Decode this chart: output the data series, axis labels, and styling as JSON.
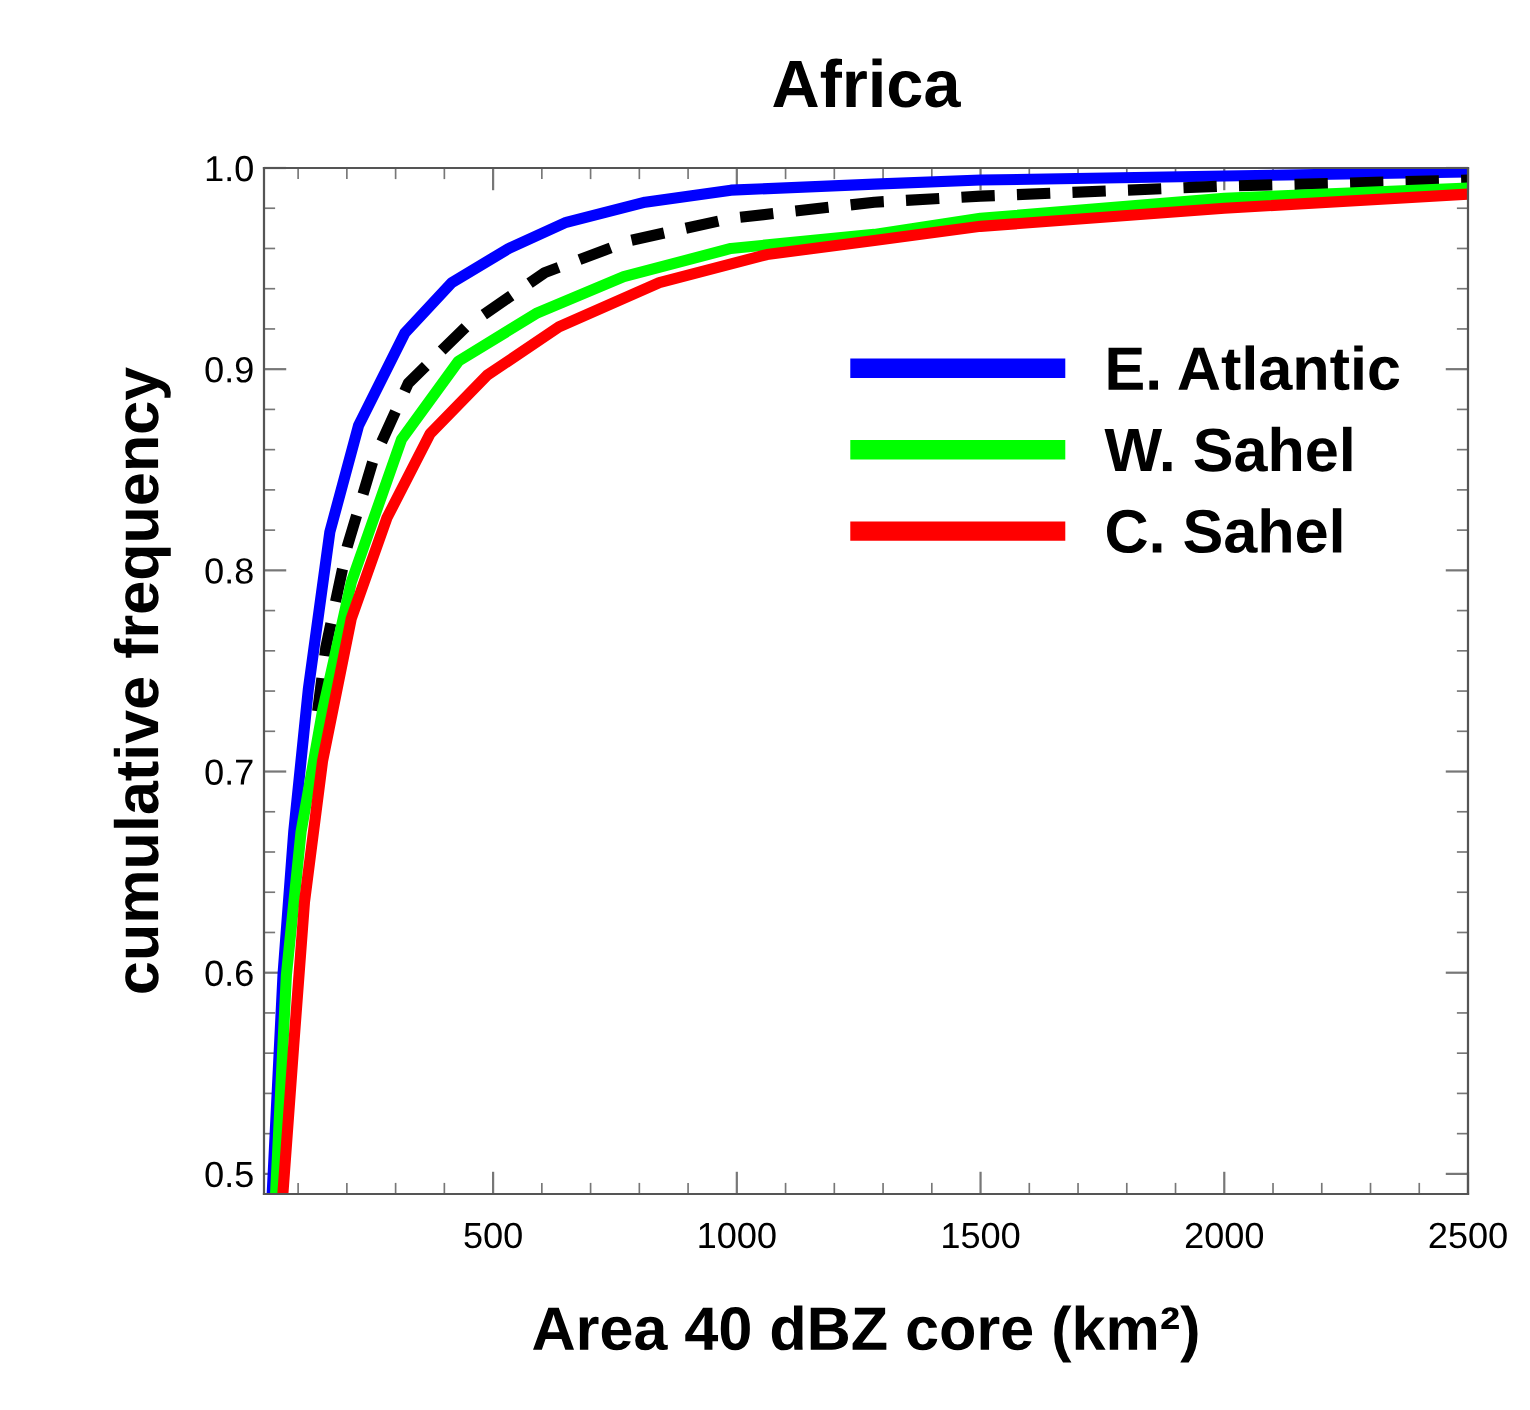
{
  "chart_data": {
    "type": "line",
    "title": "Africa",
    "xlabel": "Area 40 dBZ core (km²)",
    "ylabel": "cumulative frequency",
    "xlim": [
      30,
      2500
    ],
    "ylim": [
      0.49,
      1.0
    ],
    "xticks": [
      500,
      1000,
      1500,
      2000,
      2500
    ],
    "yticks": [
      {
        "value": 0.5,
        "label": "0.5"
      },
      {
        "value": 0.6,
        "label": "0.6"
      },
      {
        "value": 0.7,
        "label": "0.7"
      },
      {
        "value": 0.8,
        "label": "0.8"
      },
      {
        "value": 0.9,
        "label": "0.9"
      },
      {
        "value": 1.0,
        "label": "1.0"
      }
    ],
    "grid": false,
    "legend": "right",
    "marker": "none",
    "series": [
      {
        "name": "E. Atlantic",
        "color": "#0000ff",
        "line_style": "solid",
        "x": [
          47,
          69,
          91,
          121,
          165,
          224,
          319,
          415,
          532,
          650,
          812,
          988,
          1282,
          1500,
          2000,
          2500
        ],
        "values": [
          0.491,
          0.599,
          0.67,
          0.741,
          0.819,
          0.872,
          0.918,
          0.943,
          0.96,
          0.973,
          0.983,
          0.989,
          0.992,
          0.994,
          0.996,
          0.998
        ]
      },
      {
        "color": "#000000",
        "line_style": "dashed",
        "x": [
          140,
          157,
          201,
          253,
          326,
          444,
          606,
          782,
          988,
          1282,
          1500,
          2000,
          2500
        ],
        "values": [
          0.73,
          0.762,
          0.812,
          0.854,
          0.893,
          0.921,
          0.948,
          0.964,
          0.975,
          0.983,
          0.986,
          0.991,
          0.994
        ]
      },
      {
        "name": "W. Sahel",
        "color": "#00ff00",
        "line_style": "solid",
        "x": [
          54,
          76,
          106,
          150,
          209,
          312,
          429,
          591,
          768,
          988,
          1282,
          1500,
          2000,
          2500
        ],
        "values": [
          0.491,
          0.599,
          0.67,
          0.73,
          0.794,
          0.865,
          0.904,
          0.928,
          0.946,
          0.96,
          0.967,
          0.975,
          0.985,
          0.99
        ]
      },
      {
        "name": "C. Sahel",
        "color": "#ff0000",
        "line_style": "solid",
        "x": [
          69,
          91,
          113,
          150,
          209,
          282,
          371,
          488,
          635,
          841,
          1062,
          1282,
          1500,
          2000,
          2500
        ],
        "values": [
          0.491,
          0.564,
          0.635,
          0.705,
          0.776,
          0.826,
          0.868,
          0.897,
          0.921,
          0.943,
          0.957,
          0.964,
          0.971,
          0.98,
          0.987
        ]
      }
    ]
  }
}
